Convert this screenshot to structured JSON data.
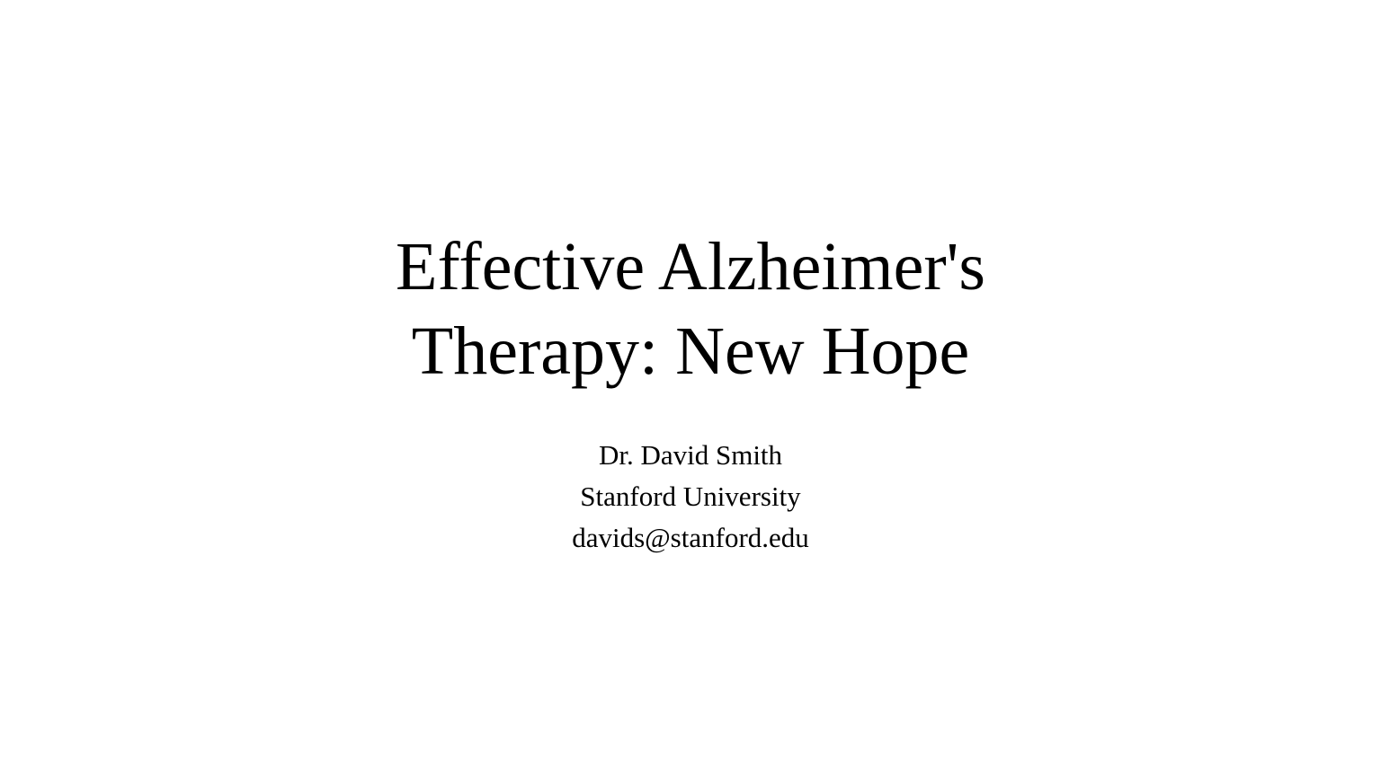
{
  "slide": {
    "title_lines": [
      "Effective Alzheimer's",
      "Therapy: New Hope"
    ],
    "author": "Dr. David Smith",
    "affiliation": "Stanford University",
    "email": "davids@stanford.edu"
  }
}
